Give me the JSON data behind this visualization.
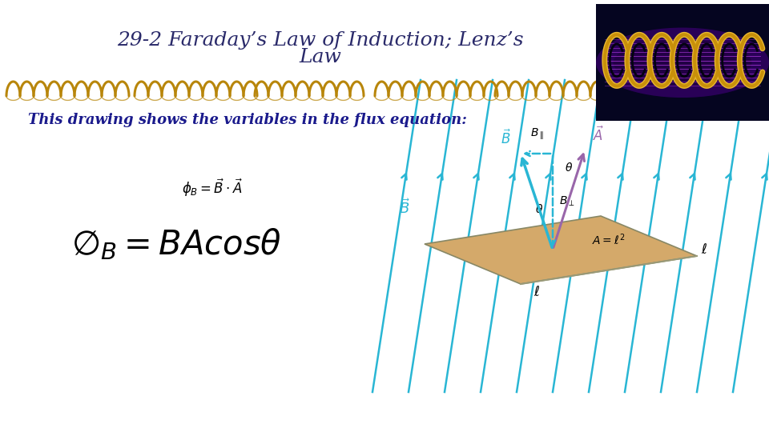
{
  "title_line1": "29-2 Faraday’s Law of Induction; Lenz’s",
  "title_line2": "Law",
  "title_color": "#2a2a6a",
  "title_fontsize": 18,
  "subtitle": "This drawing shows the variables in the flux equation:",
  "subtitle_color": "#1a1a8c",
  "subtitle_fontsize": 13,
  "background_color": "#ffffff",
  "coil_color": "#b8860b",
  "field_color": "#29b6d4",
  "plate_color": "#d4a96a",
  "a_vector_color": "#9966aa",
  "b_vector_color": "#29b6d4"
}
